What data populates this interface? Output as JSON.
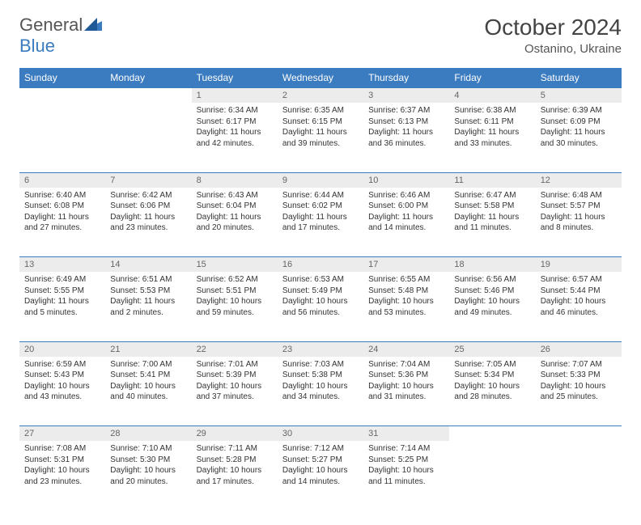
{
  "brand": {
    "part1": "General",
    "part2": "Blue"
  },
  "title": "October 2024",
  "location": "Ostanino, Ukraine",
  "colors": {
    "header_bg": "#3b7bbf",
    "header_text": "#ffffff",
    "daynum_bg": "#ececec",
    "daynum_text": "#666666",
    "body_text": "#333333",
    "page_bg": "#ffffff",
    "row_divider": "#3b7bbf"
  },
  "typography": {
    "title_fontsize": 28,
    "location_fontsize": 15,
    "header_fontsize": 12,
    "daynum_fontsize": 11,
    "cell_fontsize": 10
  },
  "weekdays": [
    "Sunday",
    "Monday",
    "Tuesday",
    "Wednesday",
    "Thursday",
    "Friday",
    "Saturday"
  ],
  "weeks": [
    {
      "nums": [
        "",
        "",
        "1",
        "2",
        "3",
        "4",
        "5"
      ],
      "cells": [
        "",
        "",
        "Sunrise: 6:34 AM\nSunset: 6:17 PM\nDaylight: 11 hours and 42 minutes.",
        "Sunrise: 6:35 AM\nSunset: 6:15 PM\nDaylight: 11 hours and 39 minutes.",
        "Sunrise: 6:37 AM\nSunset: 6:13 PM\nDaylight: 11 hours and 36 minutes.",
        "Sunrise: 6:38 AM\nSunset: 6:11 PM\nDaylight: 11 hours and 33 minutes.",
        "Sunrise: 6:39 AM\nSunset: 6:09 PM\nDaylight: 11 hours and 30 minutes."
      ]
    },
    {
      "nums": [
        "6",
        "7",
        "8",
        "9",
        "10",
        "11",
        "12"
      ],
      "cells": [
        "Sunrise: 6:40 AM\nSunset: 6:08 PM\nDaylight: 11 hours and 27 minutes.",
        "Sunrise: 6:42 AM\nSunset: 6:06 PM\nDaylight: 11 hours and 23 minutes.",
        "Sunrise: 6:43 AM\nSunset: 6:04 PM\nDaylight: 11 hours and 20 minutes.",
        "Sunrise: 6:44 AM\nSunset: 6:02 PM\nDaylight: 11 hours and 17 minutes.",
        "Sunrise: 6:46 AM\nSunset: 6:00 PM\nDaylight: 11 hours and 14 minutes.",
        "Sunrise: 6:47 AM\nSunset: 5:58 PM\nDaylight: 11 hours and 11 minutes.",
        "Sunrise: 6:48 AM\nSunset: 5:57 PM\nDaylight: 11 hours and 8 minutes."
      ]
    },
    {
      "nums": [
        "13",
        "14",
        "15",
        "16",
        "17",
        "18",
        "19"
      ],
      "cells": [
        "Sunrise: 6:49 AM\nSunset: 5:55 PM\nDaylight: 11 hours and 5 minutes.",
        "Sunrise: 6:51 AM\nSunset: 5:53 PM\nDaylight: 11 hours and 2 minutes.",
        "Sunrise: 6:52 AM\nSunset: 5:51 PM\nDaylight: 10 hours and 59 minutes.",
        "Sunrise: 6:53 AM\nSunset: 5:49 PM\nDaylight: 10 hours and 56 minutes.",
        "Sunrise: 6:55 AM\nSunset: 5:48 PM\nDaylight: 10 hours and 53 minutes.",
        "Sunrise: 6:56 AM\nSunset: 5:46 PM\nDaylight: 10 hours and 49 minutes.",
        "Sunrise: 6:57 AM\nSunset: 5:44 PM\nDaylight: 10 hours and 46 minutes."
      ]
    },
    {
      "nums": [
        "20",
        "21",
        "22",
        "23",
        "24",
        "25",
        "26"
      ],
      "cells": [
        "Sunrise: 6:59 AM\nSunset: 5:43 PM\nDaylight: 10 hours and 43 minutes.",
        "Sunrise: 7:00 AM\nSunset: 5:41 PM\nDaylight: 10 hours and 40 minutes.",
        "Sunrise: 7:01 AM\nSunset: 5:39 PM\nDaylight: 10 hours and 37 minutes.",
        "Sunrise: 7:03 AM\nSunset: 5:38 PM\nDaylight: 10 hours and 34 minutes.",
        "Sunrise: 7:04 AM\nSunset: 5:36 PM\nDaylight: 10 hours and 31 minutes.",
        "Sunrise: 7:05 AM\nSunset: 5:34 PM\nDaylight: 10 hours and 28 minutes.",
        "Sunrise: 7:07 AM\nSunset: 5:33 PM\nDaylight: 10 hours and 25 minutes."
      ]
    },
    {
      "nums": [
        "27",
        "28",
        "29",
        "30",
        "31",
        "",
        ""
      ],
      "cells": [
        "Sunrise: 7:08 AM\nSunset: 5:31 PM\nDaylight: 10 hours and 23 minutes.",
        "Sunrise: 7:10 AM\nSunset: 5:30 PM\nDaylight: 10 hours and 20 minutes.",
        "Sunrise: 7:11 AM\nSunset: 5:28 PM\nDaylight: 10 hours and 17 minutes.",
        "Sunrise: 7:12 AM\nSunset: 5:27 PM\nDaylight: 10 hours and 14 minutes.",
        "Sunrise: 7:14 AM\nSunset: 5:25 PM\nDaylight: 10 hours and 11 minutes.",
        "",
        ""
      ]
    }
  ]
}
